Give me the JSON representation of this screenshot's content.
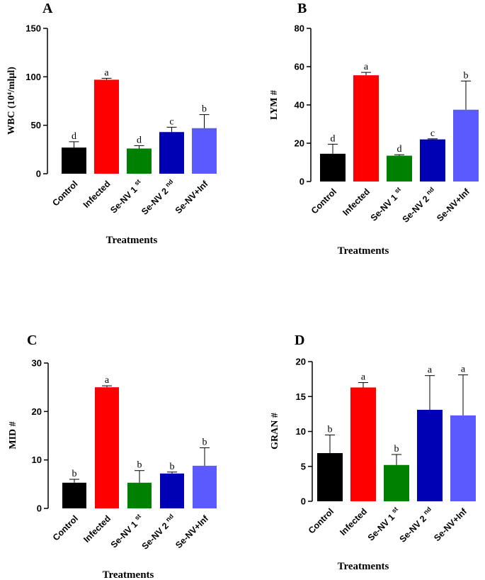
{
  "chart_data": [
    {
      "type": "bar",
      "panel": "A",
      "ylabel": "WBC (10⁴/mlµl)",
      "xlabel": "Treatments",
      "ylim": [
        0,
        150
      ],
      "yticks": [
        0,
        50,
        100,
        150
      ],
      "categories": [
        "Control",
        "Infected",
        "Se-NV 1st",
        "Se-NV 2nd",
        "Se-NV+Inf"
      ],
      "values": [
        27,
        97,
        26,
        43,
        47
      ],
      "errors": [
        6,
        1.5,
        3,
        5,
        14
      ],
      "significance": [
        "d",
        "a",
        "d",
        "c",
        "b"
      ],
      "colors": [
        "#000000",
        "#ff0000",
        "#008000",
        "#0000b4",
        "#5a5aff"
      ]
    },
    {
      "type": "bar",
      "panel": "B",
      "ylabel": "LYM #",
      "xlabel": "Treatments",
      "ylim": [
        0,
        80
      ],
      "yticks": [
        0,
        20,
        40,
        60,
        80
      ],
      "categories": [
        "Control",
        "Infected",
        "Se-NV 1st",
        "Se-NV 2nd",
        "Se-NV+Inf"
      ],
      "values": [
        14.5,
        55.5,
        13.5,
        22,
        37.5
      ],
      "errors": [
        5,
        1.5,
        0.5,
        0.3,
        15
      ],
      "significance": [
        "d",
        "a",
        "d",
        "c",
        "b"
      ],
      "colors": [
        "#000000",
        "#ff0000",
        "#008000",
        "#0000b4",
        "#5a5aff"
      ]
    },
    {
      "type": "bar",
      "panel": "C",
      "ylabel": "MID #",
      "xlabel": "Treatments",
      "ylim": [
        0,
        30
      ],
      "yticks": [
        0,
        10,
        20,
        30
      ],
      "categories": [
        "Control",
        "Infected",
        "Se-NV 1st",
        "Se-NV 2nd",
        "Se-NV+Inf"
      ],
      "values": [
        5.3,
        25,
        5.3,
        7.2,
        8.8
      ],
      "errors": [
        0.7,
        0.3,
        2.5,
        0.3,
        3.7
      ],
      "significance": [
        "b",
        "a",
        "b",
        "b",
        "b"
      ],
      "colors": [
        "#000000",
        "#ff0000",
        "#008000",
        "#0000b4",
        "#5a5aff"
      ]
    },
    {
      "type": "bar",
      "panel": "D",
      "ylabel": "GRAN #",
      "xlabel": "Treatments",
      "ylim": [
        0,
        20
      ],
      "yticks": [
        0,
        5,
        10,
        15,
        20
      ],
      "categories": [
        "Control",
        "Infected",
        "Se-NV 1st",
        "Se-NV 2nd",
        "Se-NV+Inf"
      ],
      "values": [
        6.9,
        16.3,
        5.2,
        13.1,
        12.3
      ],
      "errors": [
        2.6,
        0.7,
        1.5,
        4.9,
        5.8
      ],
      "significance": [
        "b",
        "a",
        "b",
        "a",
        "a"
      ],
      "colors": [
        "#000000",
        "#ff0000",
        "#008000",
        "#0000b4",
        "#5a5aff"
      ]
    }
  ]
}
